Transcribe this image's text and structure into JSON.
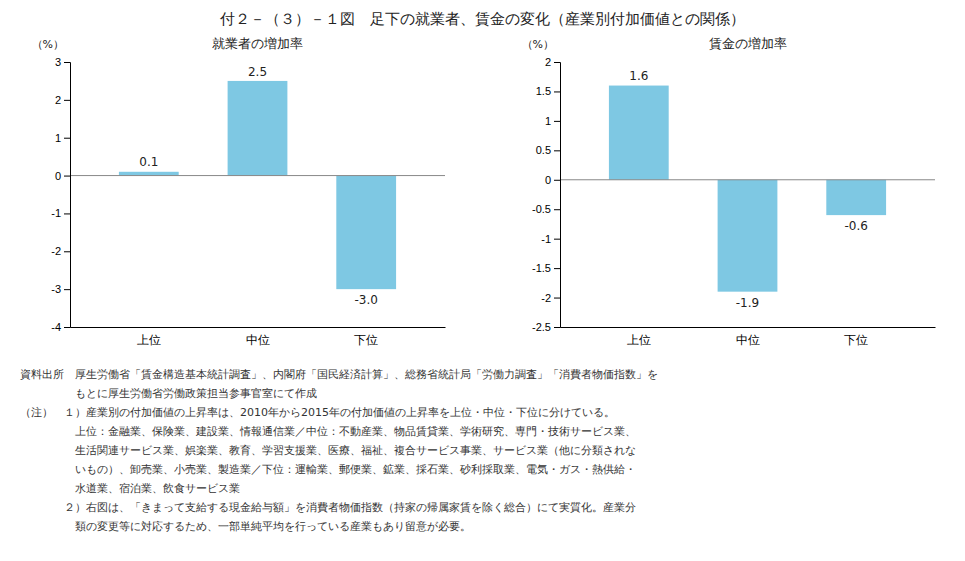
{
  "title": "付２－（３）－１図　足下の就業者、賃金の変化（産業別付加価値との関係）",
  "annotations": [
    "資料出所　厚生労働省「賃金構造基本統計調査」、内閣府「国民経済計算」、総務省統計局「労働力調査」「消費者物価指数」を",
    "　　　　　もとに厚生労働省労働政策担当参事官室にて作成",
    "（注）　１）産業別の付加価値の上昇率は、2010年から2015年の付加価値の上昇率を上位・中位・下位に分けている。",
    "　　　　　上位：金融業、保険業、建設業、情報通信業／中位：不動産業、物品賃貸業、学術研究、専門・技術サービス業、",
    "　　　　　生活関連サービス業、娯楽業、教育、学習支援業、医療、福祉、複合サービス事業、サービス業（他に分類されな",
    "　　　　　いもの）、卸売業、小売業、製造業／下位：運輸業、郵便業、鉱業、採石業、砂利採取業、電気・ガス・熱供給・",
    "　　　　　水道業、宿泊業、飲食サービス業",
    "　　　　２）右図は、「きまって支給する現金給与額」を消費者物価指数（持家の帰属家賃を除く総合）にて実質化。産業分",
    "　　　　　類の変更等に対応するため、一部単純平均を行っている産業もあり留意が必要。"
  ],
  "chart_data": [
    {
      "type": "bar",
      "title": "就業者の増加率",
      "categories": [
        "上位",
        "中位",
        "下位"
      ],
      "values": [
        0.1,
        2.5,
        -3.0
      ],
      "value_labels": [
        "0.1",
        "2.5",
        "-3.0"
      ],
      "data_labels": true,
      "ylabel": "（%）",
      "ylim": [
        -4,
        3
      ],
      "yticks": [
        -4,
        -3,
        -2,
        -1,
        0,
        1,
        2,
        3
      ],
      "color": "#7ec8e3",
      "grid": false
    },
    {
      "type": "bar",
      "title": "賃金の増加率",
      "categories": [
        "上位",
        "中位",
        "下位"
      ],
      "values": [
        1.6,
        -1.9,
        -0.6
      ],
      "data_labels": true,
      "ylabel": "（%）",
      "ylim": [
        -2.5,
        2.0
      ],
      "yticks": [
        -2.5,
        -2,
        -1.5,
        -1,
        -0.5,
        0,
        0.5,
        1,
        1.5,
        2
      ],
      "color": "#7ec8e3",
      "grid": false
    }
  ]
}
